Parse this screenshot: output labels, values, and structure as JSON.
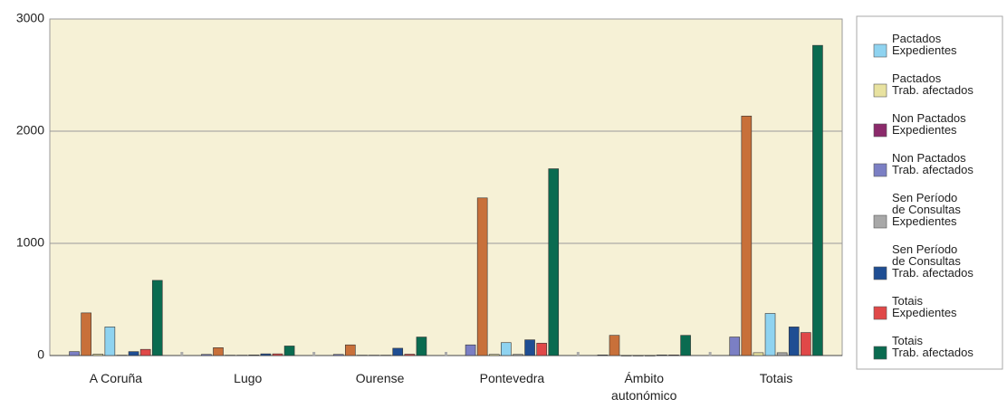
{
  "chart_data": {
    "type": "bar",
    "categories": [
      "A Coruña",
      "Lugo",
      "Ourense",
      "Pontevedra",
      "Ámbito\nautonómico",
      "Totais"
    ],
    "series": [
      {
        "name": "Pactados\nExpedientes",
        "color": "#8fd3f0",
        "values": [
          255,
          3,
          3,
          115,
          0,
          375
        ]
      },
      {
        "name": "Pactados\nTrab. afectados",
        "color": "#e8e2a0",
        "values": [
          12,
          3,
          3,
          10,
          0,
          25
        ]
      },
      {
        "name": "Non Pactados\nExpedientes",
        "color": "#8b2a6b",
        "bar_color": "#c8703a",
        "values": [
          380,
          70,
          95,
          1405,
          180,
          2135
        ]
      },
      {
        "name": "Non Pactados\nTrab. afectados",
        "color": "#7b7fc4",
        "values": [
          35,
          10,
          10,
          95,
          5,
          165
        ]
      },
      {
        "name": "Sen Período\nde Consultas\nExpedientes",
        "color": "#a8a8a8",
        "values": [
          3,
          5,
          3,
          10,
          0,
          25
        ]
      },
      {
        "name": "Sen Período\nde Consultas\nTrab. afectados",
        "color": "#1f4e93",
        "values": [
          35,
          15,
          65,
          140,
          5,
          255
        ]
      },
      {
        "name": "Totais\nExpedientes",
        "color": "#e04848",
        "values": [
          55,
          15,
          12,
          110,
          5,
          205
        ]
      },
      {
        "name": "Totais\nTrab. afectados",
        "color": "#0a6b50",
        "values": [
          670,
          85,
          165,
          1665,
          180,
          2765
        ]
      }
    ],
    "ylim": [
      0,
      3000
    ],
    "yticks": [
      0,
      1000,
      2000,
      3000
    ],
    "grid": true,
    "legend": "right"
  }
}
